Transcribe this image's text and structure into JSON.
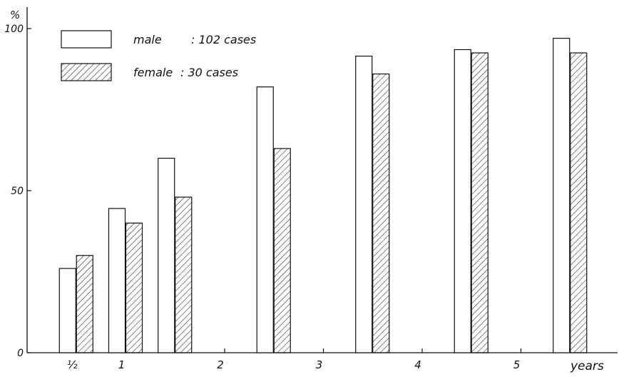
{
  "chart_data": {
    "type": "bar",
    "ylabel": "%",
    "xlabel": "years",
    "ylim": [
      0,
      100
    ],
    "y_ticks": [
      {
        "value": 0,
        "label": "0"
      },
      {
        "value": 50,
        "label": "50"
      },
      {
        "value": 100,
        "label": "100"
      }
    ],
    "x_ticks": [
      {
        "value": 0.5,
        "label": "½"
      },
      {
        "value": 1,
        "label": "1"
      },
      {
        "value": 2,
        "label": "2"
      },
      {
        "value": 3,
        "label": "3"
      },
      {
        "value": 4,
        "label": "4"
      },
      {
        "value": 5,
        "label": "5"
      }
    ],
    "groups": [
      {
        "x": 0.5,
        "male": 26,
        "female": 30
      },
      {
        "x": 1,
        "male": 44.5,
        "female": 40
      },
      {
        "x": 1.5,
        "male": 60,
        "female": 48
      },
      {
        "x": 2.5,
        "male": 82,
        "female": 63
      },
      {
        "x": 3.5,
        "male": 91.5,
        "female": 86
      },
      {
        "x": 4.5,
        "male": 93.5,
        "female": 92.5
      },
      {
        "x": 5.5,
        "male": 97,
        "female": 92.5
      }
    ],
    "series": [
      {
        "key": "male",
        "name": "male",
        "count_label": ": 102 cases",
        "fill": "none"
      },
      {
        "key": "female",
        "name": "female",
        "count_label": ": 30 cases",
        "fill": "hatched"
      }
    ],
    "legend_position": "top-left",
    "grid": false
  }
}
